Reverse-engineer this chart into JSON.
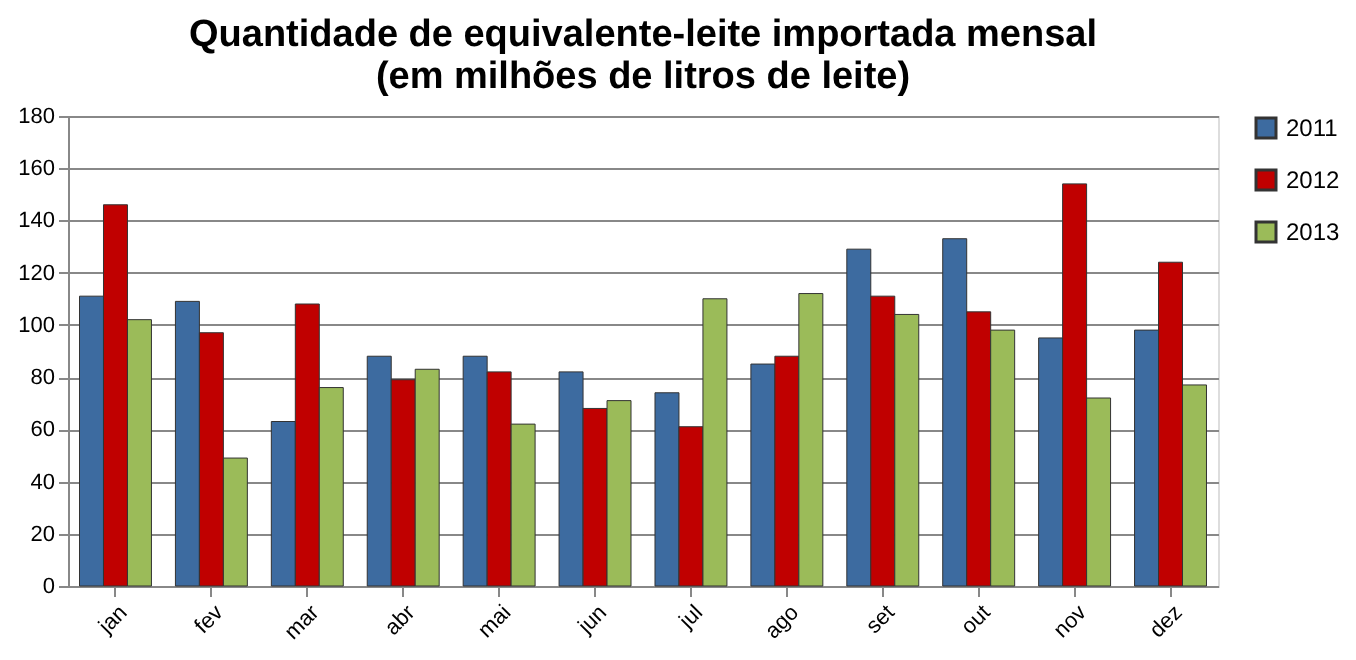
{
  "chart_data": {
    "type": "bar",
    "title": [
      "Quantidade de equivalente-leite importada mensal",
      "(em milhões de litros de leite)"
    ],
    "categories": [
      "jan",
      "fev",
      "mar",
      "abr",
      "mai",
      "jun",
      "jul",
      "ago",
      "set",
      "out",
      "nov",
      "dez"
    ],
    "series": [
      {
        "name": "2011",
        "color": "#3d6ba0",
        "values": [
          111,
          109,
          63,
          88,
          88,
          82,
          74,
          85,
          129,
          133,
          95,
          98
        ]
      },
      {
        "name": "2012",
        "color": "#c00000",
        "values": [
          146,
          97,
          108,
          79,
          82,
          68,
          61,
          88,
          111,
          105,
          154,
          124
        ]
      },
      {
        "name": "2013",
        "color": "#9bbb59",
        "values": [
          102,
          49,
          76,
          83,
          62,
          71,
          110,
          112,
          104,
          98,
          72,
          77
        ]
      }
    ],
    "ylim": [
      0,
      180
    ],
    "yticks": [
      0,
      20,
      40,
      60,
      80,
      100,
      120,
      140,
      160,
      180
    ],
    "grid": "y",
    "legend": "right"
  }
}
